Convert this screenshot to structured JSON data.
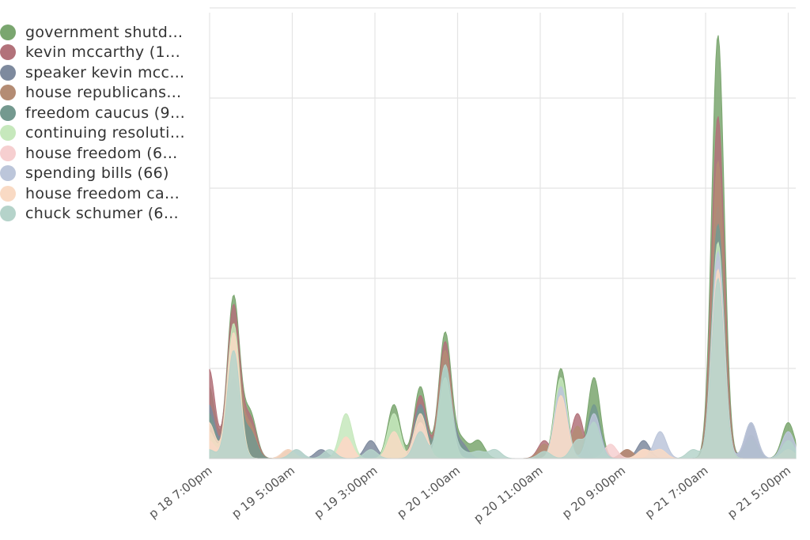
{
  "chart_data": {
    "type": "area",
    "stacked": false,
    "title": "",
    "xlabel": "",
    "ylabel": "",
    "grid": true,
    "legend_position": "top-left",
    "x_ticks": [
      "p 18 7:00pm",
      "p 19 5:00am",
      "p 19 3:00pm",
      "p 20 1:00am",
      "p 20 11:00am",
      "p 20 9:00pm",
      "p 21 7:00am",
      "p 21 5:00pm"
    ],
    "x_tick_hours": [
      0,
      10,
      20,
      30,
      40,
      50,
      60,
      70
    ],
    "x_range_hours": [
      0,
      71
    ],
    "y_range": [
      0,
      250
    ],
    "y_grid": [
      0,
      50,
      100,
      150,
      200,
      250
    ],
    "series": [
      {
        "name": "government shutd…",
        "color": "#7aa66f",
        "peaks": [
          [
            -0.1,
            40
          ],
          [
            2.9,
            90
          ],
          [
            4.9,
            25
          ],
          [
            22.3,
            30
          ],
          [
            25.5,
            40
          ],
          [
            28.5,
            70
          ],
          [
            30.5,
            10
          ],
          [
            32.5,
            10
          ],
          [
            42.5,
            50
          ],
          [
            46.5,
            45
          ],
          [
            61.5,
            235
          ],
          [
            65.5,
            13
          ],
          [
            70.0,
            20
          ]
        ]
      },
      {
        "name": "kevin mccarthy (1…",
        "color": "#b2727a",
        "peaks": [
          [
            -0.1,
            50
          ],
          [
            2.9,
            85
          ],
          [
            4.9,
            22
          ],
          [
            25.5,
            35
          ],
          [
            28.5,
            65
          ],
          [
            40.5,
            10
          ],
          [
            44.5,
            25
          ],
          [
            50.5,
            5
          ],
          [
            61.5,
            190
          ],
          [
            65.5,
            10
          ]
        ]
      },
      {
        "name": "speaker kevin mcc…",
        "color": "#7e8a9e",
        "peaks": [
          [
            -0.1,
            30
          ],
          [
            2.9,
            70
          ],
          [
            13.5,
            5
          ],
          [
            19.5,
            10
          ],
          [
            25.5,
            30
          ],
          [
            28.5,
            55
          ],
          [
            30.5,
            8
          ],
          [
            52.5,
            10
          ],
          [
            61.5,
            140
          ],
          [
            65.5,
            20
          ]
        ]
      },
      {
        "name": "house republicans…",
        "color": "#b48c74",
        "peaks": [
          [
            -0.1,
            20
          ],
          [
            2.9,
            75
          ],
          [
            4.9,
            18
          ],
          [
            9.5,
            5
          ],
          [
            25.5,
            25
          ],
          [
            28.5,
            60
          ],
          [
            40.5,
            8
          ],
          [
            44.5,
            18
          ],
          [
            50.5,
            5
          ],
          [
            61.5,
            165
          ]
        ]
      },
      {
        "name": "freedom caucus (9…",
        "color": "#74998f",
        "peaks": [
          [
            -0.1,
            25
          ],
          [
            2.9,
            60
          ],
          [
            4.9,
            15
          ],
          [
            25.5,
            28
          ],
          [
            28.5,
            50
          ],
          [
            30.5,
            6
          ],
          [
            46.5,
            30
          ],
          [
            61.5,
            130
          ],
          [
            65.5,
            10
          ]
        ]
      },
      {
        "name": "continuing resoluti…",
        "color": "#c6e8bc",
        "peaks": [
          [
            -0.1,
            15
          ],
          [
            2.9,
            75
          ],
          [
            16.5,
            25
          ],
          [
            22.3,
            25
          ],
          [
            28.5,
            45
          ],
          [
            42.5,
            45
          ],
          [
            61.5,
            120
          ]
        ]
      },
      {
        "name": "house freedom (6…",
        "color": "#f6cfd0",
        "peaks": [
          [
            -0.1,
            10
          ],
          [
            2.9,
            60
          ],
          [
            16.5,
            12
          ],
          [
            25.5,
            20
          ],
          [
            42.5,
            35
          ],
          [
            48.5,
            8
          ],
          [
            52.5,
            5
          ],
          [
            61.5,
            110
          ]
        ]
      },
      {
        "name": "spending bills (66)",
        "color": "#bcc6da",
        "peaks": [
          [
            2.9,
            45
          ],
          [
            10.5,
            5
          ],
          [
            25.5,
            18
          ],
          [
            42.5,
            40
          ],
          [
            46.5,
            25
          ],
          [
            54.5,
            15
          ],
          [
            61.5,
            115
          ],
          [
            65.5,
            20
          ],
          [
            70.0,
            15
          ]
        ]
      },
      {
        "name": "house freedom ca…",
        "color": "#f9dac4",
        "peaks": [
          [
            -0.1,
            20
          ],
          [
            2.9,
            70
          ],
          [
            9.5,
            5
          ],
          [
            16.5,
            12
          ],
          [
            22.3,
            15
          ],
          [
            25.5,
            25
          ],
          [
            42.5,
            35
          ],
          [
            52.5,
            5
          ],
          [
            54.5,
            5
          ],
          [
            61.5,
            105
          ],
          [
            70.0,
            5
          ]
        ]
      },
      {
        "name": "chuck schumer (6…",
        "color": "#b5d3ca",
        "peaks": [
          [
            -0.1,
            5
          ],
          [
            2.9,
            60
          ],
          [
            10.5,
            5
          ],
          [
            14.5,
            5
          ],
          [
            19.5,
            5
          ],
          [
            25.5,
            15
          ],
          [
            28.5,
            52
          ],
          [
            30.5,
            4
          ],
          [
            32.5,
            4
          ],
          [
            34.5,
            5
          ],
          [
            40.5,
            4
          ],
          [
            44.5,
            10
          ],
          [
            46.5,
            20
          ],
          [
            58.5,
            5
          ],
          [
            61.5,
            100
          ],
          [
            70.0,
            10
          ]
        ]
      }
    ]
  }
}
